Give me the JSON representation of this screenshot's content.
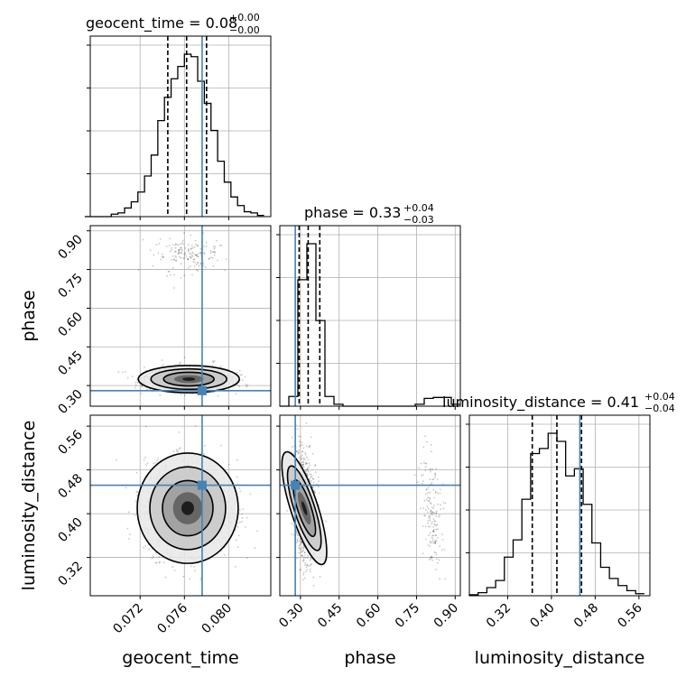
{
  "chart_data": {
    "type": "corner",
    "parameters": [
      "geocent_time",
      "phase",
      "luminosity_distance"
    ],
    "truth_color": "#4682b4",
    "truths": {
      "geocent_time": 0.0776,
      "phase": 0.28,
      "luminosity_distance": 0.452
    },
    "ranges": {
      "geocent_time": [
        0.0675,
        0.0838
      ],
      "phase": [
        0.22,
        0.92
      ],
      "luminosity_distance": [
        0.25,
        0.58
      ]
    },
    "ticks": {
      "geocent_time": [
        "0.072",
        "0.076",
        "0.080"
      ],
      "phase": [
        "0.30",
        "0.45",
        "0.60",
        "0.75",
        "0.90"
      ],
      "luminosity_distance": [
        "0.32",
        "0.40",
        "0.48",
        "0.56"
      ]
    },
    "titles": [
      {
        "param": "geocent_time",
        "label": "geocent_time = 0.08",
        "plus": "+0.00",
        "minus": "−0.00"
      },
      {
        "param": "phase",
        "label": "phase = 0.33",
        "plus": "+0.04",
        "minus": "−0.03"
      },
      {
        "param": "luminosity_distance",
        "label": "luminosity_distance = 0.41",
        "plus": "+0.04",
        "minus": "−0.04"
      }
    ],
    "quantiles": {
      "geocent_time": [
        0.0745,
        0.0762,
        0.078
      ],
      "phase": [
        0.295,
        0.33,
        0.375
      ],
      "luminosity_distance": [
        0.365,
        0.41,
        0.455
      ]
    },
    "histograms": {
      "geocent_time": {
        "edges": [
          0.067,
          0.0676,
          0.0682,
          0.0688,
          0.0694,
          0.07,
          0.0706,
          0.0712,
          0.0718,
          0.0724,
          0.073,
          0.0736,
          0.0742,
          0.0748,
          0.0754,
          0.076,
          0.0766,
          0.0772,
          0.0778,
          0.0784,
          0.079,
          0.0796,
          0.0802,
          0.0808,
          0.0814,
          0.082,
          0.0826,
          0.0832
        ],
        "counts": [
          0,
          0,
          0,
          0,
          2,
          3,
          7,
          12,
          20,
          33,
          50,
          78,
          97,
          112,
          122,
          132,
          130,
          110,
          92,
          70,
          45,
          28,
          16,
          9,
          4,
          3,
          1
        ]
      },
      "phase": {
        "edges": [
          0.22,
          0.255,
          0.29,
          0.325,
          0.36,
          0.395,
          0.43,
          0.465,
          0.5,
          0.535,
          0.57,
          0.605,
          0.64,
          0.675,
          0.71,
          0.745,
          0.78,
          0.815,
          0.85,
          0.885,
          0.92
        ],
        "counts": [
          0,
          10,
          130,
          167,
          88,
          10,
          2,
          0,
          0,
          0,
          0,
          0,
          0,
          0,
          0,
          2,
          8,
          9,
          9,
          2
        ]
      },
      "luminosity_distance": {
        "edges": [
          0.25,
          0.266,
          0.282,
          0.298,
          0.314,
          0.33,
          0.346,
          0.362,
          0.378,
          0.394,
          0.41,
          0.426,
          0.442,
          0.458,
          0.474,
          0.49,
          0.506,
          0.522,
          0.538,
          0.554,
          0.57
        ],
        "counts": [
          1,
          3,
          8,
          15,
          38,
          55,
          95,
          140,
          145,
          160,
          152,
          118,
          125,
          90,
          52,
          28,
          17,
          10,
          5,
          2
        ]
      }
    },
    "contour_regions": [
      {
        "pair": [
          "geocent_time",
          "phase"
        ],
        "center": [
          0.0764,
          0.325
        ],
        "sigma": [
          0.0019,
          0.022
        ],
        "secondary": {
          "center": [
            0.0764,
            0.81
          ],
          "sigma": [
            0.0016,
            0.035
          ],
          "weight": 0.12
        }
      },
      {
        "pair": [
          "geocent_time",
          "luminosity_distance"
        ],
        "center": [
          0.0763,
          0.41
        ],
        "sigma": [
          0.0019,
          0.042
        ]
      },
      {
        "pair": [
          "phase",
          "luminosity_distance"
        ],
        "center": [
          0.315,
          0.41
        ],
        "sigma": [
          0.022,
          0.045
        ],
        "tilt": 0.35,
        "secondary": {
          "center": [
            0.81,
            0.4
          ],
          "sigma": [
            0.022,
            0.05
          ],
          "weight": 0.12
        }
      }
    ],
    "grid": true
  }
}
